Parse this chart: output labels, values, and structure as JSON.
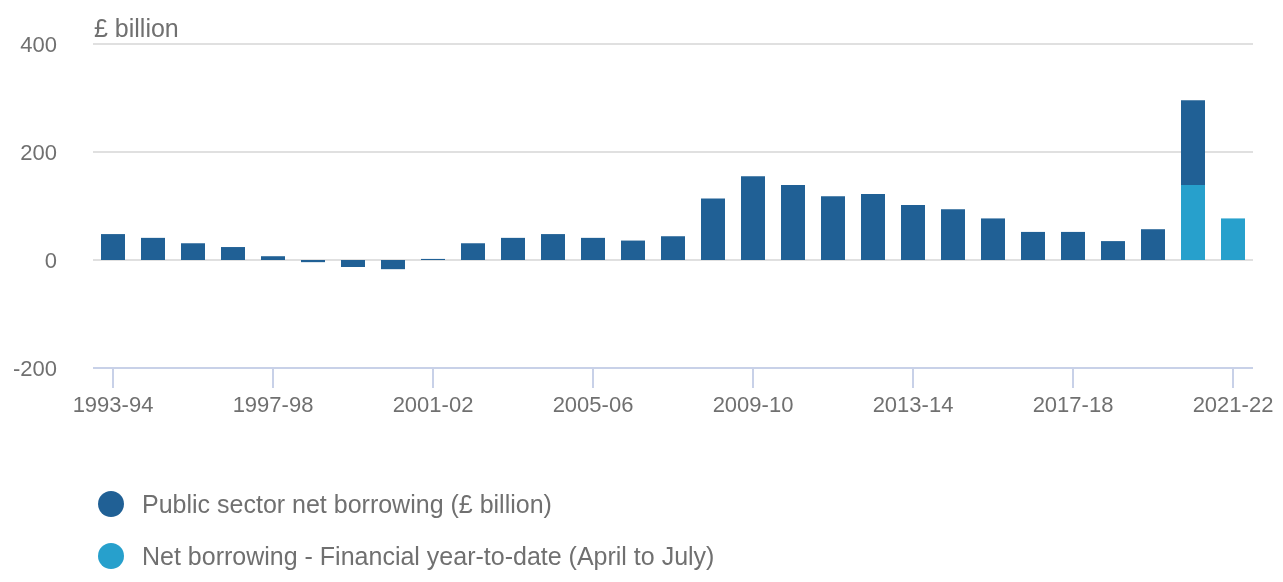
{
  "chart_data": {
    "type": "bar",
    "ylabel": "£ billion",
    "stacked": true,
    "grid": "y",
    "legend": "bottom left",
    "marker": "circle",
    "categories": [
      "1993-94",
      null,
      null,
      null,
      "1997-98",
      null,
      null,
      null,
      "2001-02",
      null,
      null,
      null,
      "2005-06",
      null,
      null,
      null,
      "2009-10",
      null,
      null,
      null,
      "2013-14",
      null,
      null,
      null,
      "2017-18",
      null,
      null,
      null,
      "2021-22"
    ],
    "ylim": [
      -200,
      400
    ],
    "yticks": [
      -200,
      0,
      200,
      400
    ],
    "series": [
      {
        "name": "Net borrowing - Financial year-to-date (April to July)",
        "color": "#27a0cc",
        "values": [
          null,
          null,
          null,
          null,
          null,
          null,
          null,
          null,
          null,
          null,
          null,
          null,
          null,
          null,
          null,
          null,
          null,
          null,
          null,
          null,
          null,
          null,
          null,
          null,
          null,
          null,
          null,
          139,
          77
        ]
      },
      {
        "name": "Public sector net borrowing (£ billion)",
        "color": "#206095",
        "values": [
          48,
          41,
          31,
          24,
          7,
          -4,
          -13,
          -17,
          2,
          31,
          41,
          48,
          41,
          36,
          44,
          114,
          155,
          139,
          118,
          122,
          102,
          94,
          77,
          52,
          52,
          35,
          57,
          157,
          null
        ]
      }
    ]
  }
}
